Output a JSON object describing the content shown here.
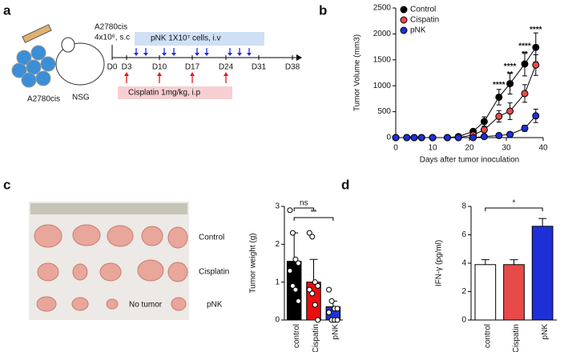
{
  "panel_labels": [
    "a",
    "b",
    "c",
    "d"
  ],
  "diagram": {
    "cell_line": "A2780cis",
    "dose": "4x10⁶, s.c",
    "pnk": "pNK 1X10⁷ cells, i.v",
    "days": [
      "D0",
      "D3",
      "D10",
      "D17",
      "D24",
      "D31",
      "D38"
    ],
    "cisplatin": "Cisplatin 1mg/kg,  i.p",
    "cells": "A2780cis",
    "mouse": "NSG"
  },
  "photo": {
    "rows": [
      "Control",
      "Cisplatin",
      "pNK"
    ],
    "note": "No tumor"
  },
  "chart_data": [
    {
      "type": "line",
      "xlabel": "Days after tumor inoculation",
      "ylabel": "Tumor Volume (mm3)",
      "x": [
        0,
        3,
        5,
        7,
        10,
        14,
        17,
        21,
        24,
        28,
        31,
        35,
        38
      ],
      "series": [
        {
          "name": "Control",
          "color": "#000000",
          "values": [
            0,
            0,
            0,
            0,
            0,
            0,
            20,
            120,
            310,
            780,
            1040,
            1420,
            1740
          ],
          "errors": [
            0,
            0,
            0,
            0,
            0,
            0,
            10,
            40,
            90,
            150,
            200,
            230,
            280
          ]
        },
        {
          "name": "Cispatin",
          "color": "#e84a4a",
          "values": [
            0,
            0,
            0,
            0,
            0,
            0,
            0,
            50,
            150,
            410,
            510,
            850,
            1400
          ],
          "errors": [
            0,
            0,
            0,
            0,
            0,
            0,
            0,
            20,
            50,
            110,
            160,
            170,
            200
          ]
        },
        {
          "name": "pNK",
          "color": "#1f2fd8",
          "values": [
            0,
            0,
            0,
            0,
            0,
            0,
            0,
            0,
            20,
            40,
            60,
            180,
            420
          ],
          "errors": [
            0,
            0,
            0,
            0,
            0,
            0,
            0,
            0,
            10,
            20,
            30,
            60,
            130
          ]
        }
      ],
      "xlim": [
        0,
        40
      ],
      "xticks": [
        0,
        10,
        20,
        30,
        40
      ],
      "ylim": [
        0,
        2500
      ],
      "yticks": [
        0,
        500,
        1000,
        1500,
        2000,
        2500
      ],
      "legend": "top-left",
      "annotations": [
        {
          "text": "****",
          "x": 28,
          "y": 1010,
          "color": "#1f2fd8"
        },
        {
          "text": "****",
          "x": 31,
          "y": 1370,
          "color": "#1f2fd8"
        },
        {
          "text": "**",
          "x": 31,
          "y": 1210,
          "color": "#e84a4a"
        },
        {
          "text": "****",
          "x": 35,
          "y": 1760,
          "color": "#1f2fd8"
        },
        {
          "text": "**",
          "x": 35,
          "y": 1600,
          "color": "#e84a4a"
        },
        {
          "text": "****",
          "x": 38,
          "y": 2080,
          "color": "#1f2fd8"
        }
      ]
    },
    {
      "type": "bar",
      "ylabel": "Tumor weight (g)",
      "categories": [
        "control",
        "Cispatin",
        "pNK"
      ],
      "values": [
        1.55,
        1.0,
        0.35
      ],
      "errors": [
        0.75,
        0.6,
        0.15
      ],
      "colors": [
        "#000000",
        "#e80f0f",
        "#1f2fd8"
      ],
      "points": [
        [
          2.9,
          2.3,
          1.6,
          1.5,
          1.3,
          0.9,
          0.8,
          0.5
        ],
        [
          2.3,
          2.2,
          1.0,
          0.9,
          0.8,
          0.7,
          0.4,
          0
        ],
        [
          0.8,
          0.5,
          0.3,
          0.3,
          0.2,
          0,
          0,
          0
        ]
      ],
      "ylim": [
        0,
        3
      ],
      "yticks": [
        0,
        1,
        2,
        3
      ],
      "significance": [
        "ns",
        "**"
      ]
    },
    {
      "type": "bar",
      "ylabel": "IFN-γ (pg/ml)",
      "categories": [
        "control",
        "Cispatin",
        "pNK"
      ],
      "values": [
        3.9,
        3.9,
        6.6
      ],
      "errors": [
        0.35,
        0.35,
        0.55
      ],
      "colors": [
        "#ffffff",
        "#e84a4a",
        "#1f2fd8"
      ],
      "ylim": [
        0,
        8
      ],
      "yticks": [
        0,
        2,
        4,
        6,
        8
      ],
      "significance": [
        "*"
      ]
    }
  ]
}
